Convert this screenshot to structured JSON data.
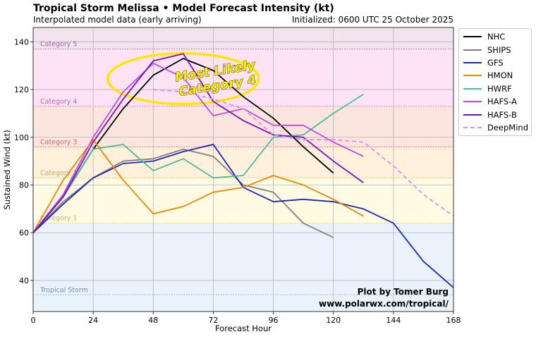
{
  "title": "Tropical Storm Melissa • Model Forecast Intensity (kt)",
  "subtitle": "Interpolated model data (early arriving)",
  "initialized": "Initialized: 0600 UTC 25 October 2025",
  "credit": {
    "line1": "Plot by Tomer Burg",
    "line2": "www.polarwx.com/tropical/"
  },
  "colors": {
    "tropical_storm_band": "#eaf2fb",
    "category_1_band": "#fffbe3",
    "category_2_band": "#fff1dc",
    "category_3_band": "#fde5df",
    "category_4_band": "#fde3f5",
    "category_5_band": "#f1e4ef",
    "highlight_ellipse": "#ffe600"
  },
  "chart_data": {
    "type": "line",
    "xlabel": "Forecast Hour",
    "ylabel": "Sustained Wind (kt)",
    "xlim": [
      0,
      168
    ],
    "ylim": [
      27,
      146
    ],
    "x_ticks": [
      0,
      24,
      48,
      72,
      96,
      120,
      144,
      168
    ],
    "y_ticks": [
      40,
      60,
      80,
      100,
      120,
      140
    ],
    "grid": true,
    "legend_position": "outside-right",
    "annotation": "Most Likely\nCategory 4",
    "category_bands": [
      {
        "label": "Tropical Storm",
        "from": 34,
        "to": 64
      },
      {
        "label": "Category 1",
        "from": 64,
        "to": 83
      },
      {
        "label": "Category 2",
        "from": 83,
        "to": 96
      },
      {
        "label": "Category 3",
        "from": 96,
        "to": 113
      },
      {
        "label": "Category 4",
        "from": 113,
        "to": 137
      },
      {
        "label": "Category 5",
        "from": 137,
        "to": 146
      }
    ],
    "series": [
      {
        "name": "NHC",
        "color": "#000000",
        "dashed": false,
        "x": [
          0,
          12,
          24,
          36,
          48,
          60,
          72,
          84,
          96,
          108,
          120
        ],
        "y": [
          60,
          75,
          95,
          112,
          126,
          133,
          128,
          117,
          108,
          96,
          85
        ]
      },
      {
        "name": "SHIPS",
        "color": "#7f7f7f",
        "dashed": false,
        "x": [
          0,
          12,
          24,
          36,
          48,
          60,
          72,
          84,
          96,
          108,
          120
        ],
        "y": [
          60,
          73,
          83,
          90,
          91,
          95,
          92,
          80,
          77,
          64,
          58
        ]
      },
      {
        "name": "GFS",
        "color": "#1a27c4",
        "dashed": false,
        "x": [
          0,
          12,
          24,
          36,
          48,
          60,
          72,
          84,
          96,
          108,
          120,
          132,
          144,
          156,
          168
        ],
        "y": [
          60,
          72,
          83,
          89,
          90,
          94,
          97,
          79,
          73,
          74,
          73,
          70,
          64,
          48,
          37
        ]
      },
      {
        "name": "HMON",
        "color": "#f28500",
        "dashed": false,
        "x": [
          0,
          12,
          24,
          36,
          48,
          60,
          72,
          84,
          96,
          108,
          120,
          132
        ],
        "y": [
          60,
          82,
          99,
          82,
          68,
          71,
          77,
          79,
          84,
          80,
          74,
          67
        ]
      },
      {
        "name": "HWRF",
        "color": "#43c09a",
        "dashed": false,
        "x": [
          0,
          12,
          24,
          36,
          48,
          60,
          72,
          84,
          96,
          108,
          120,
          132
        ],
        "y": [
          60,
          75,
          95,
          97,
          86,
          91,
          83,
          84,
          100,
          101,
          110,
          118
        ]
      },
      {
        "name": "HAFS-A",
        "color": "#c04be6",
        "dashed": false,
        "x": [
          0,
          12,
          24,
          36,
          48,
          60,
          72,
          84,
          96,
          108,
          120,
          132
        ],
        "y": [
          60,
          76,
          100,
          119,
          131,
          125,
          109,
          112,
          105,
          105,
          98,
          92
        ]
      },
      {
        "name": "HAFS-B",
        "color": "#7a10b8",
        "dashed": false,
        "x": [
          0,
          12,
          24,
          36,
          48,
          60,
          72,
          84,
          96,
          108,
          120,
          132
        ],
        "y": [
          60,
          75,
          98,
          116,
          132,
          135,
          115,
          107,
          101,
          100,
          90,
          81
        ]
      },
      {
        "name": "DeepMind",
        "color": "#e48ae8",
        "dashed": true,
        "x": [
          48,
          60,
          72,
          84,
          96,
          108,
          120,
          132,
          144,
          156,
          168
        ],
        "y": [
          120,
          119,
          116,
          112,
          101,
          99,
          99,
          98,
          88,
          76,
          67
        ]
      }
    ]
  }
}
